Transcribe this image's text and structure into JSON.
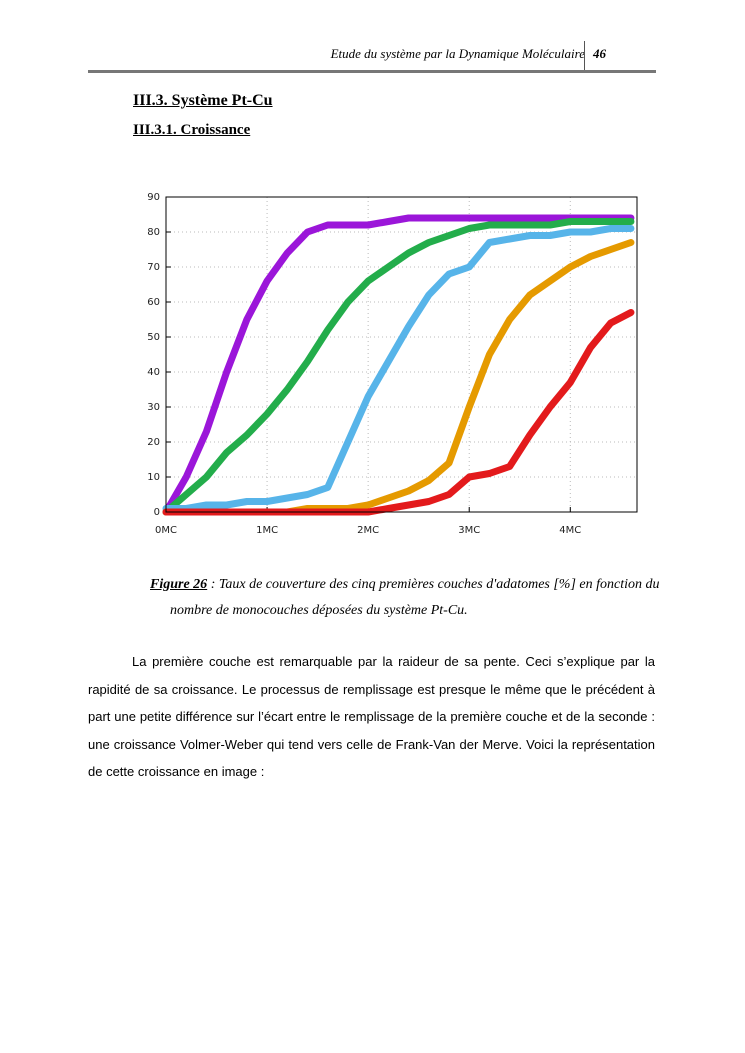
{
  "header": {
    "title": "Etude du système par la Dynamique Moléculaire",
    "page": "46"
  },
  "section": "III.3. Système Pt-Cu",
  "subsection": "III.3.1. Croissance",
  "chart_data": {
    "type": "line",
    "x": [
      0,
      0.2,
      0.4,
      0.6,
      0.8,
      1.0,
      1.2,
      1.4,
      1.6,
      1.8,
      2.0,
      2.2,
      2.4,
      2.6,
      2.8,
      3.0,
      3.2,
      3.4,
      3.6,
      3.8,
      4.0,
      4.2,
      4.4,
      4.6
    ],
    "series": [
      {
        "color": "#9b16d9",
        "values": [
          0,
          10,
          23,
          40,
          55,
          66,
          74,
          80,
          82,
          82,
          82,
          83,
          84,
          84,
          84,
          84,
          84,
          84,
          84,
          84,
          84,
          84,
          84,
          84
        ]
      },
      {
        "color": "#23ad4b",
        "values": [
          0,
          5,
          10,
          17,
          22,
          28,
          35,
          43,
          52,
          60,
          66,
          70,
          74,
          77,
          79,
          81,
          82,
          82,
          82,
          82,
          83,
          83,
          83,
          83
        ]
      },
      {
        "color": "#57b4e9",
        "values": [
          1,
          1,
          2,
          2,
          3,
          3,
          4,
          5,
          7,
          20,
          33,
          43,
          53,
          62,
          68,
          70,
          77,
          78,
          79,
          79,
          80,
          80,
          81,
          81
        ]
      },
      {
        "color": "#e59a00",
        "values": [
          0,
          0,
          0,
          0,
          0,
          0,
          0,
          1,
          1,
          1,
          2,
          4,
          6,
          9,
          14,
          30,
          45,
          55,
          62,
          66,
          70,
          73,
          75,
          77
        ]
      },
      {
        "color": "#e31a1c",
        "values": [
          0,
          0,
          0,
          0,
          0,
          0,
          0,
          0,
          0,
          0,
          0,
          1,
          2,
          3,
          5,
          10,
          11,
          13,
          22,
          30,
          37,
          47,
          54,
          57
        ]
      }
    ],
    "xlim": [
      0,
      4.66
    ],
    "ylim": [
      0,
      90
    ],
    "xticks": [
      {
        "value": 0,
        "label": "0MC"
      },
      {
        "value": 1,
        "label": "1MC"
      },
      {
        "value": 2,
        "label": "2MC"
      },
      {
        "value": 3,
        "label": "3MC"
      },
      {
        "value": 4,
        "label": "4MC"
      }
    ],
    "yticks": [
      0,
      10,
      20,
      30,
      40,
      50,
      60,
      70,
      80,
      90
    ],
    "grid": true
  },
  "caption": {
    "label": "Figure 26",
    "text": " : Taux de couverture des cinq premières couches d'adatomes [%] en fonction du nombre de monocouches  déposées du système Pt-Cu."
  },
  "paragraph": "La première couche est remarquable par la raideur de sa pente. Ceci s’explique par la rapidité de sa croissance. Le processus de remplissage est presque le même que le précédent à part une petite différence sur l’écart entre le remplissage de la première couche et de la seconde : une croissance Volmer-Weber qui tend vers celle de Frank-Van der Merve. Voici la représentation de cette croissance en image :"
}
